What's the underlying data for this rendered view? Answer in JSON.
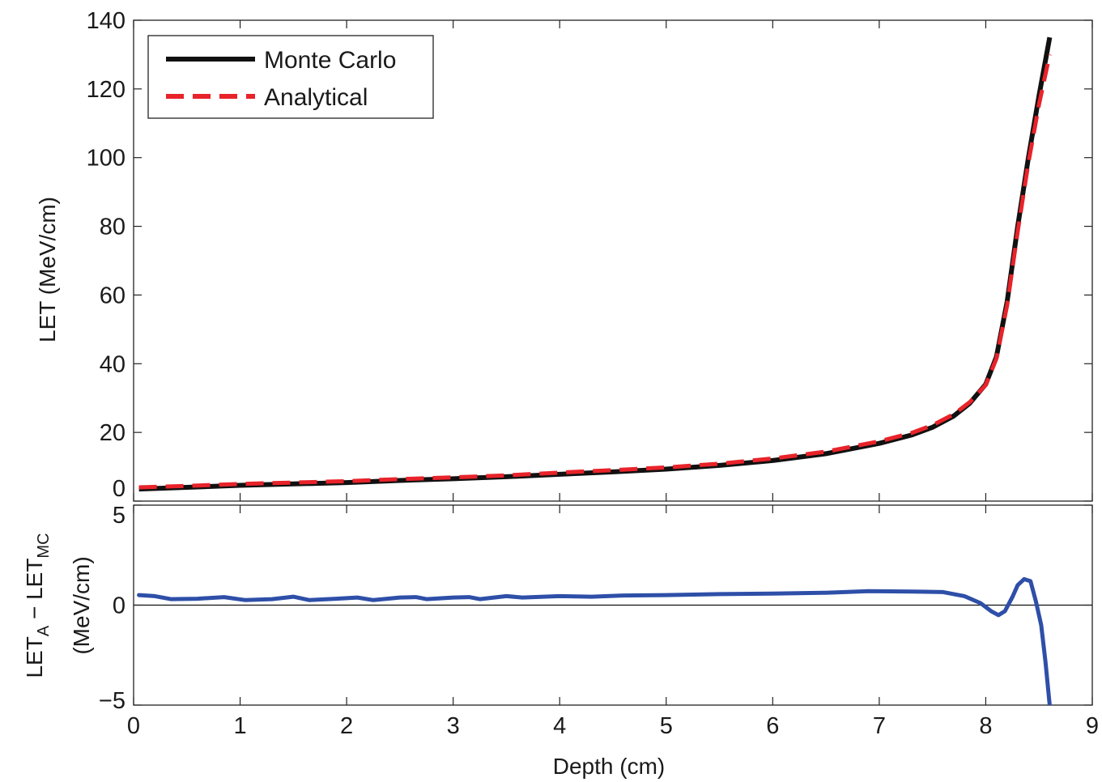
{
  "chart_data": [
    {
      "type": "line",
      "title": "",
      "xlabel": "",
      "ylabel": "LET (MeV/cm)",
      "xlim": [
        0,
        9
      ],
      "ylim": [
        0,
        140
      ],
      "y_ticks": [
        0,
        20,
        40,
        60,
        80,
        100,
        120,
        140
      ],
      "legend": {
        "position": "top-left",
        "entries": [
          "Monte Carlo",
          "Analytical"
        ]
      },
      "series": [
        {
          "name": "Monte Carlo",
          "color": "#111111",
          "style": "solid",
          "x": [
            0.05,
            0.5,
            1.0,
            1.5,
            2.0,
            2.5,
            3.0,
            3.5,
            4.0,
            4.5,
            5.0,
            5.5,
            6.0,
            6.5,
            7.0,
            7.3,
            7.5,
            7.7,
            7.85,
            8.0,
            8.1,
            8.2,
            8.3,
            8.4,
            8.5,
            8.6
          ],
          "y": [
            3.5,
            4.0,
            4.6,
            5.0,
            5.4,
            6.0,
            6.5,
            7.1,
            7.8,
            8.5,
            9.3,
            10.4,
            11.8,
            13.8,
            16.8,
            19.2,
            21.5,
            24.8,
            28.5,
            34.0,
            42.0,
            58.0,
            80.0,
            100.0,
            118.0,
            135.0
          ]
        },
        {
          "name": "Analytical",
          "color": "#e8232a",
          "style": "dashed",
          "x": [
            0.05,
            0.5,
            1.0,
            1.5,
            2.0,
            2.5,
            3.0,
            3.5,
            4.0,
            4.5,
            5.0,
            5.5,
            6.0,
            6.5,
            7.0,
            7.3,
            7.5,
            7.7,
            7.85,
            8.0,
            8.1,
            8.2,
            8.3,
            8.4,
            8.5,
            8.6
          ],
          "y": [
            4.0,
            4.4,
            5.0,
            5.4,
            5.8,
            6.4,
            6.9,
            7.5,
            8.3,
            9.0,
            9.8,
            10.9,
            12.4,
            14.4,
            17.4,
            19.8,
            22.1,
            25.3,
            28.8,
            33.8,
            41.5,
            57.0,
            78.5,
            98.5,
            115.5,
            130.0
          ]
        }
      ]
    },
    {
      "type": "line",
      "title": "",
      "xlabel": "Depth (cm)",
      "ylabel": "LET_A − LET_MC (MeV/cm)",
      "ylabel_parts": {
        "line1_a": "LET",
        "line1_sub_a": "A",
        "line1_mid": " − LET",
        "line1_sub_b": "MC",
        "line2": "(MeV/cm)"
      },
      "xlim": [
        0,
        9
      ],
      "ylim": [
        -5,
        5
      ],
      "x_ticks": [
        0,
        1,
        2,
        3,
        4,
        5,
        6,
        7,
        8,
        9
      ],
      "y_ticks": [
        -5,
        0,
        5
      ],
      "y_tick_labels": [
        "−5",
        "0",
        "5"
      ],
      "zero_line": true,
      "series": [
        {
          "name": "",
          "color": "#2e4fa8",
          "style": "solid",
          "x": [
            0.05,
            0.2,
            0.35,
            0.6,
            0.85,
            1.05,
            1.3,
            1.5,
            1.65,
            1.9,
            2.1,
            2.25,
            2.5,
            2.65,
            2.75,
            3.0,
            3.15,
            3.25,
            3.5,
            3.65,
            4.0,
            4.3,
            4.6,
            5.0,
            5.5,
            6.0,
            6.5,
            6.9,
            7.3,
            7.6,
            7.8,
            7.95,
            8.05,
            8.12,
            8.18,
            8.25,
            8.3,
            8.36,
            8.42,
            8.47,
            8.52,
            8.56,
            8.6
          ],
          "y": [
            0.5,
            0.45,
            0.3,
            0.32,
            0.4,
            0.25,
            0.3,
            0.42,
            0.25,
            0.32,
            0.38,
            0.25,
            0.38,
            0.4,
            0.3,
            0.38,
            0.4,
            0.3,
            0.45,
            0.38,
            0.45,
            0.42,
            0.48,
            0.5,
            0.55,
            0.58,
            0.62,
            0.7,
            0.68,
            0.65,
            0.45,
            0.1,
            -0.3,
            -0.5,
            -0.3,
            0.4,
            1.0,
            1.3,
            1.2,
            0.2,
            -1.0,
            -2.8,
            -5.0
          ]
        }
      ]
    }
  ]
}
